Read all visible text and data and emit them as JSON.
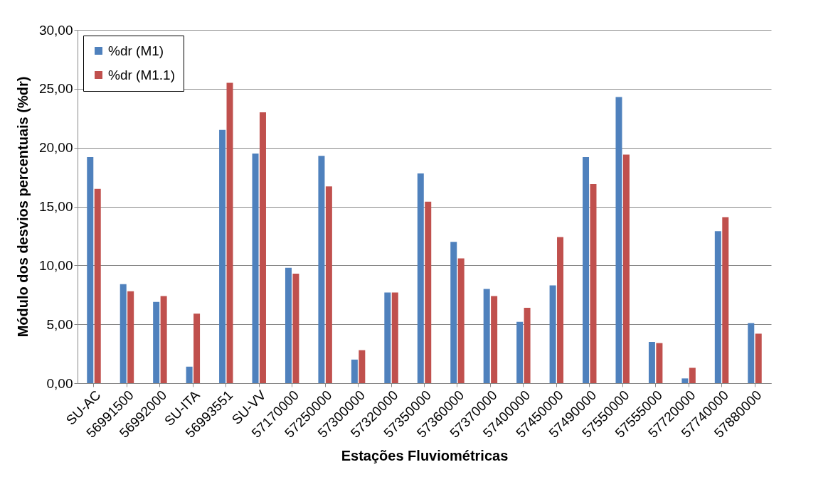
{
  "chart_data": {
    "type": "bar",
    "xlabel": "Estações Fluviométricas",
    "ylabel": "Módulo dos desvios percentuais (%dr)",
    "categories": [
      "SU-AC",
      "56991500",
      "56992000",
      "SU-ITA",
      "56993551",
      "SU-VV",
      "57170000",
      "57250000",
      "57300000",
      "57320000",
      "57350000",
      "57360000",
      "57370000",
      "57400000",
      "57450000",
      "57490000",
      "57550000",
      "57555000",
      "57720000",
      "57740000",
      "57880000"
    ],
    "series": [
      {
        "name": "%dr (M1)",
        "color": "#4f81bd",
        "values": [
          19.2,
          8.4,
          6.9,
          1.4,
          21.5,
          19.5,
          9.8,
          19.3,
          2.0,
          7.7,
          17.8,
          12.0,
          8.0,
          5.2,
          8.3,
          19.2,
          24.3,
          3.5,
          0.4,
          12.9,
          5.1
        ]
      },
      {
        "name": "%dr (M1.1)",
        "color": "#c0504d",
        "values": [
          16.5,
          7.8,
          7.4,
          5.9,
          25.5,
          23.0,
          9.3,
          16.7,
          2.8,
          7.7,
          15.4,
          10.6,
          7.4,
          6.4,
          12.4,
          16.9,
          19.4,
          3.4,
          1.3,
          14.1,
          4.2
        ]
      }
    ],
    "ylim": [
      0,
      30
    ],
    "yticks": [
      {
        "value": 0,
        "label": "0,00"
      },
      {
        "value": 5,
        "label": "5,00"
      },
      {
        "value": 10,
        "label": "10,00"
      },
      {
        "value": 15,
        "label": "15,00"
      },
      {
        "value": 20,
        "label": "20,00"
      },
      {
        "value": 25,
        "label": "25,00"
      },
      {
        "value": 30,
        "label": "30,00"
      }
    ],
    "grid": "y",
    "legend": "top left"
  }
}
